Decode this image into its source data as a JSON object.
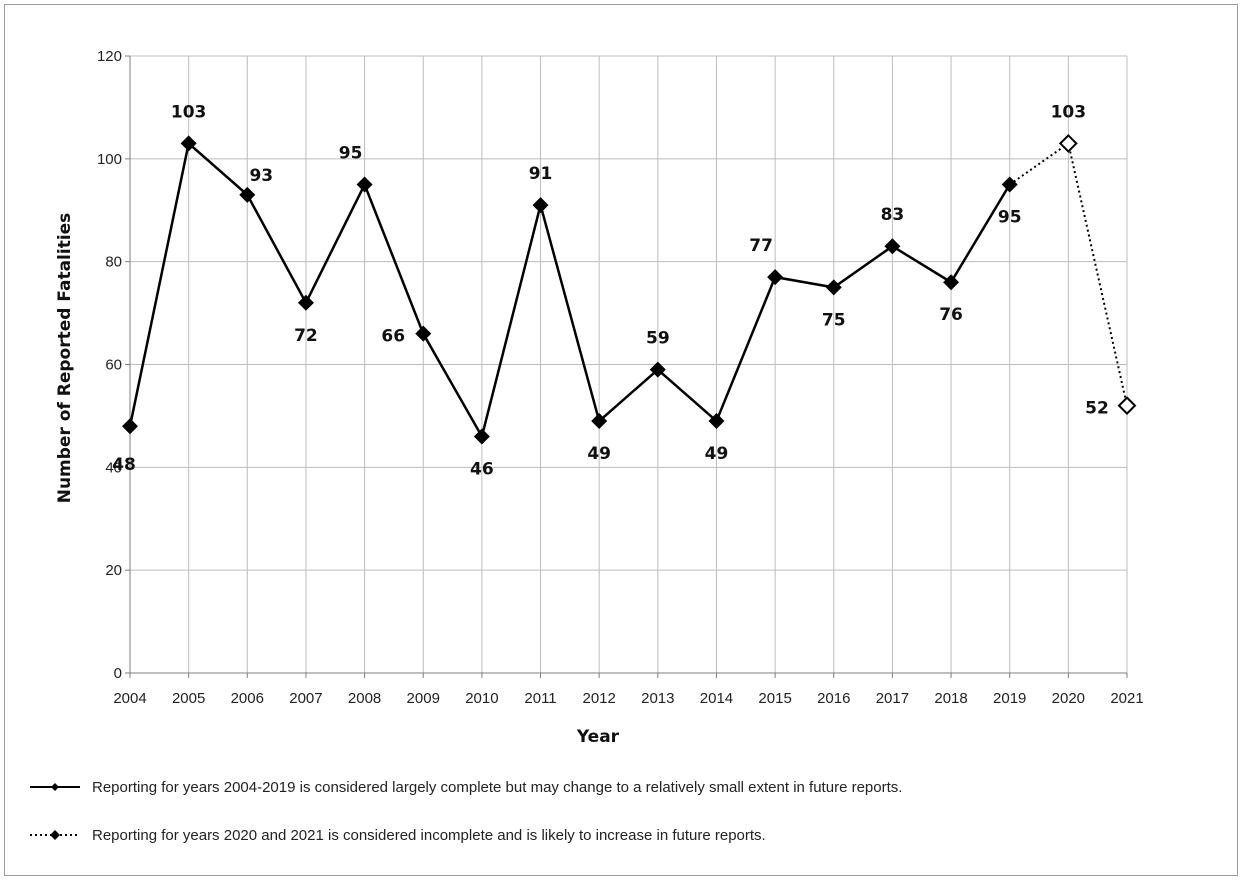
{
  "chart_data": {
    "type": "line",
    "xlabel": "Year",
    "ylabel": "Number of Reported Fatalities",
    "ylim": [
      0,
      120
    ],
    "yticks": [
      0,
      20,
      40,
      60,
      80,
      100,
      120
    ],
    "categories": [
      "2004",
      "2005",
      "2006",
      "2007",
      "2008",
      "2009",
      "2010",
      "2011",
      "2012",
      "2013",
      "2014",
      "2015",
      "2016",
      "2017",
      "2018",
      "2019",
      "2020",
      "2021"
    ],
    "grid": true,
    "legend_position": "bottom",
    "series": [
      {
        "name": "Reporting for years 2004-2019 is considered largely complete but may change to a relatively small extent in future reports.",
        "style": "solid",
        "marker": "filled-diamond",
        "x": [
          "2004",
          "2005",
          "2006",
          "2007",
          "2008",
          "2009",
          "2010",
          "2011",
          "2012",
          "2013",
          "2014",
          "2015",
          "2016",
          "2017",
          "2018",
          "2019"
        ],
        "values": [
          48,
          103,
          93,
          72,
          95,
          66,
          46,
          91,
          49,
          59,
          49,
          77,
          75,
          83,
          76,
          95
        ]
      },
      {
        "name": "Reporting for years 2020 and 2021 is considered incomplete and is likely to increase in future reports.",
        "style": "dotted",
        "marker": "open-diamond",
        "x": [
          "2019",
          "2020",
          "2021"
        ],
        "values": [
          95,
          103,
          52
        ]
      }
    ],
    "data_labels": [
      {
        "x": "2004",
        "text": "48",
        "pos": "below-left"
      },
      {
        "x": "2005",
        "text": "103",
        "pos": "above"
      },
      {
        "x": "2006",
        "text": "93",
        "pos": "above-right"
      },
      {
        "x": "2007",
        "text": "72",
        "pos": "below"
      },
      {
        "x": "2008",
        "text": "95",
        "pos": "above-left"
      },
      {
        "x": "2009",
        "text": "66",
        "pos": "left"
      },
      {
        "x": "2010",
        "text": "46",
        "pos": "below"
      },
      {
        "x": "2011",
        "text": "91",
        "pos": "above"
      },
      {
        "x": "2012",
        "text": "49",
        "pos": "below"
      },
      {
        "x": "2013",
        "text": "59",
        "pos": "above"
      },
      {
        "x": "2014",
        "text": "49",
        "pos": "below"
      },
      {
        "x": "2015",
        "text": "77",
        "pos": "above-left"
      },
      {
        "x": "2016",
        "text": "75",
        "pos": "below"
      },
      {
        "x": "2017",
        "text": "83",
        "pos": "above"
      },
      {
        "x": "2018",
        "text": "76",
        "pos": "below"
      },
      {
        "x": "2019",
        "text": "95",
        "pos": "below"
      },
      {
        "x": "2020",
        "text": "103",
        "pos": "above"
      },
      {
        "x": "2021",
        "text": "52",
        "pos": "left"
      }
    ],
    "colors": {
      "line": "#000000",
      "grid": "#bdbdbd",
      "axis": "#7f7f7f"
    }
  }
}
